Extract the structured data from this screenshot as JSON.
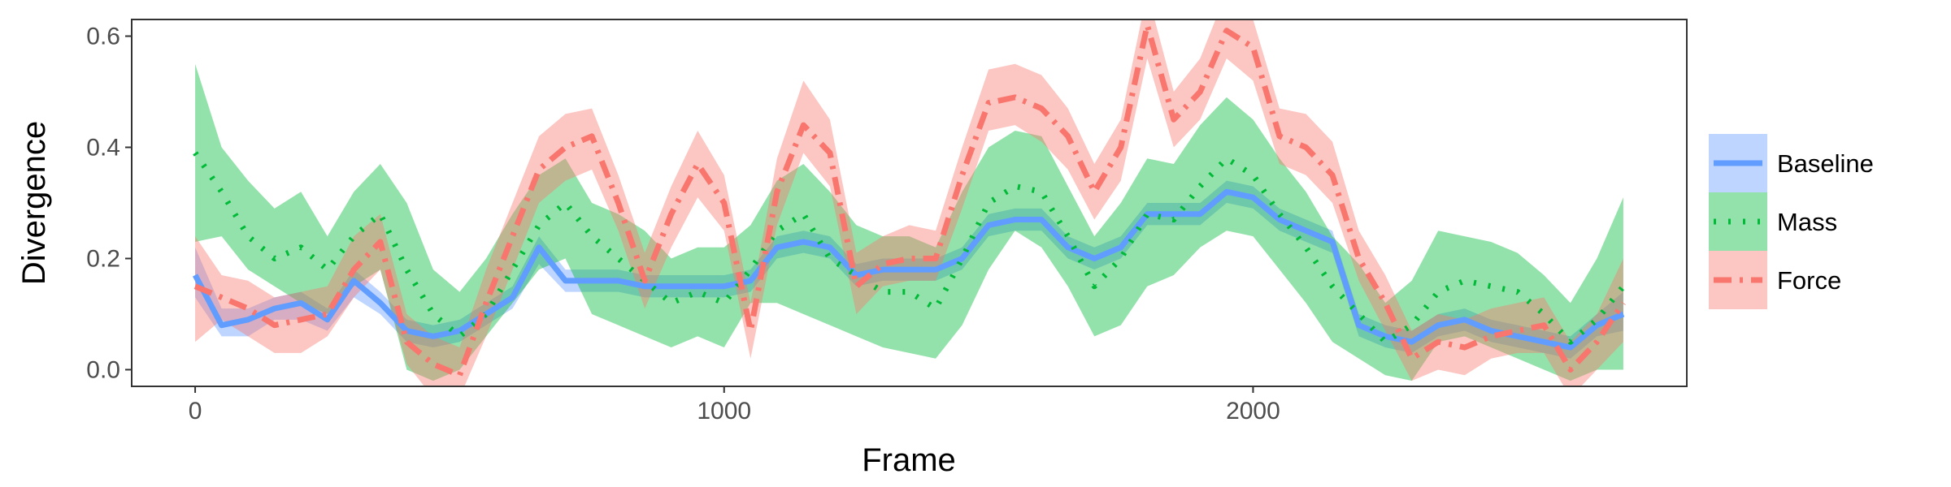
{
  "chart_data": {
    "type": "line",
    "xlabel": "Frame",
    "ylabel": "Divergence",
    "xlim": [
      -120,
      2820
    ],
    "ylim": [
      -0.03,
      0.63
    ],
    "xticks": [
      0,
      1000,
      2000
    ],
    "xtick_labels": [
      "0",
      "1000",
      "2000"
    ],
    "yticks": [
      0.0,
      0.2,
      0.4,
      0.6
    ],
    "ytick_labels": [
      "0.0",
      "0.2",
      "0.4",
      "0.6"
    ],
    "grid": false,
    "legend_position": "right",
    "x": [
      0,
      50,
      100,
      150,
      200,
      250,
      300,
      350,
      400,
      450,
      500,
      550,
      600,
      650,
      700,
      750,
      800,
      850,
      900,
      950,
      1000,
      1050,
      1100,
      1150,
      1200,
      1250,
      1300,
      1350,
      1400,
      1450,
      1500,
      1550,
      1600,
      1650,
      1700,
      1750,
      1800,
      1850,
      1900,
      1950,
      2000,
      2050,
      2100,
      2150,
      2200,
      2250,
      2300,
      2350,
      2400,
      2450,
      2500,
      2550,
      2600,
      2650,
      2700
    ],
    "series": [
      {
        "name": "Baseline",
        "color": "#619cff",
        "dash": "solid",
        "values": [
          0.17,
          0.08,
          0.09,
          0.11,
          0.12,
          0.09,
          0.16,
          0.12,
          0.07,
          0.06,
          0.07,
          0.1,
          0.13,
          0.22,
          0.16,
          0.16,
          0.16,
          0.15,
          0.15,
          0.15,
          0.15,
          0.16,
          0.22,
          0.23,
          0.22,
          0.17,
          0.18,
          0.18,
          0.18,
          0.2,
          0.26,
          0.27,
          0.27,
          0.22,
          0.2,
          0.22,
          0.28,
          0.28,
          0.28,
          0.32,
          0.31,
          0.27,
          0.25,
          0.23,
          0.08,
          0.06,
          0.05,
          0.08,
          0.09,
          0.07,
          0.06,
          0.05,
          0.04,
          0.08,
          0.1
        ],
        "lower": [
          0.13,
          0.06,
          0.06,
          0.09,
          0.09,
          0.07,
          0.13,
          0.1,
          0.05,
          0.04,
          0.05,
          0.08,
          0.11,
          0.19,
          0.14,
          0.14,
          0.14,
          0.13,
          0.13,
          0.13,
          0.13,
          0.14,
          0.2,
          0.21,
          0.2,
          0.15,
          0.16,
          0.16,
          0.16,
          0.18,
          0.24,
          0.25,
          0.25,
          0.2,
          0.18,
          0.2,
          0.26,
          0.26,
          0.26,
          0.3,
          0.29,
          0.25,
          0.23,
          0.21,
          0.06,
          0.04,
          0.03,
          0.06,
          0.07,
          0.05,
          0.04,
          0.03,
          0.02,
          0.06,
          0.07
        ],
        "upper": [
          0.22,
          0.11,
          0.11,
          0.13,
          0.14,
          0.11,
          0.18,
          0.14,
          0.09,
          0.08,
          0.09,
          0.12,
          0.15,
          0.24,
          0.18,
          0.18,
          0.18,
          0.17,
          0.17,
          0.17,
          0.17,
          0.18,
          0.24,
          0.25,
          0.24,
          0.19,
          0.2,
          0.2,
          0.2,
          0.22,
          0.28,
          0.29,
          0.29,
          0.24,
          0.22,
          0.24,
          0.3,
          0.3,
          0.3,
          0.34,
          0.33,
          0.29,
          0.27,
          0.25,
          0.1,
          0.08,
          0.07,
          0.1,
          0.11,
          0.09,
          0.08,
          0.07,
          0.06,
          0.1,
          0.14
        ]
      },
      {
        "name": "Mass",
        "color": "#00ba38",
        "dash": "dotted",
        "values": [
          0.39,
          0.32,
          0.24,
          0.2,
          0.22,
          0.18,
          0.24,
          0.28,
          0.18,
          0.1,
          0.06,
          0.1,
          0.18,
          0.26,
          0.3,
          0.24,
          0.2,
          0.16,
          0.12,
          0.14,
          0.12,
          0.18,
          0.25,
          0.28,
          0.2,
          0.17,
          0.14,
          0.14,
          0.11,
          0.2,
          0.3,
          0.33,
          0.32,
          0.24,
          0.15,
          0.2,
          0.28,
          0.27,
          0.33,
          0.38,
          0.35,
          0.28,
          0.22,
          0.15,
          0.1,
          0.05,
          0.08,
          0.14,
          0.16,
          0.15,
          0.14,
          0.1,
          0.05,
          0.09,
          0.15
        ],
        "lower": [
          0.23,
          0.24,
          0.18,
          0.15,
          0.12,
          0.1,
          0.15,
          0.18,
          0.0,
          -0.02,
          0.0,
          0.06,
          0.12,
          0.18,
          0.2,
          0.1,
          0.08,
          0.06,
          0.04,
          0.06,
          0.04,
          0.12,
          0.12,
          0.1,
          0.08,
          0.06,
          0.04,
          0.03,
          0.02,
          0.08,
          0.18,
          0.25,
          0.22,
          0.15,
          0.06,
          0.08,
          0.15,
          0.17,
          0.22,
          0.25,
          0.24,
          0.18,
          0.12,
          0.05,
          0.02,
          -0.01,
          -0.02,
          0.05,
          0.06,
          0.04,
          0.02,
          0.0,
          -0.02,
          0.0,
          0.0
        ],
        "upper": [
          0.55,
          0.4,
          0.34,
          0.29,
          0.32,
          0.24,
          0.32,
          0.37,
          0.3,
          0.18,
          0.14,
          0.2,
          0.28,
          0.35,
          0.38,
          0.3,
          0.28,
          0.25,
          0.2,
          0.22,
          0.22,
          0.26,
          0.34,
          0.37,
          0.32,
          0.26,
          0.24,
          0.24,
          0.22,
          0.32,
          0.4,
          0.43,
          0.42,
          0.33,
          0.24,
          0.3,
          0.38,
          0.37,
          0.44,
          0.49,
          0.45,
          0.38,
          0.32,
          0.24,
          0.19,
          0.12,
          0.16,
          0.25,
          0.24,
          0.23,
          0.21,
          0.17,
          0.12,
          0.2,
          0.31
        ]
      },
      {
        "name": "Force",
        "color": "#f8766d",
        "dash": "dashdot",
        "values": [
          0.15,
          0.13,
          0.11,
          0.08,
          0.09,
          0.1,
          0.18,
          0.23,
          0.05,
          0.01,
          -0.01,
          0.12,
          0.24,
          0.36,
          0.4,
          0.42,
          0.3,
          0.16,
          0.28,
          0.37,
          0.3,
          0.07,
          0.32,
          0.44,
          0.39,
          0.15,
          0.19,
          0.2,
          0.2,
          0.35,
          0.48,
          0.49,
          0.47,
          0.42,
          0.32,
          0.4,
          0.62,
          0.45,
          0.5,
          0.61,
          0.58,
          0.42,
          0.4,
          0.35,
          0.2,
          0.12,
          0.02,
          0.05,
          0.04,
          0.06,
          0.07,
          0.08,
          0.0,
          0.05,
          0.12
        ],
        "lower": [
          0.05,
          0.09,
          0.06,
          0.03,
          0.03,
          0.06,
          0.13,
          0.18,
          0.01,
          -0.05,
          -0.05,
          0.06,
          0.18,
          0.3,
          0.34,
          0.36,
          0.25,
          0.11,
          0.22,
          0.31,
          0.25,
          0.02,
          0.26,
          0.39,
          0.33,
          0.1,
          0.15,
          0.16,
          0.16,
          0.29,
          0.43,
          0.44,
          0.41,
          0.36,
          0.27,
          0.34,
          0.56,
          0.4,
          0.45,
          0.56,
          0.52,
          0.37,
          0.35,
          0.3,
          0.16,
          0.07,
          -0.02,
          0.0,
          -0.01,
          0.02,
          0.03,
          0.03,
          -0.05,
          0.0,
          0.05
        ],
        "upper": [
          0.24,
          0.17,
          0.16,
          0.13,
          0.14,
          0.15,
          0.24,
          0.28,
          0.1,
          0.06,
          0.04,
          0.18,
          0.3,
          0.42,
          0.46,
          0.47,
          0.35,
          0.21,
          0.33,
          0.43,
          0.35,
          0.12,
          0.38,
          0.52,
          0.45,
          0.21,
          0.24,
          0.26,
          0.25,
          0.4,
          0.54,
          0.55,
          0.53,
          0.47,
          0.37,
          0.45,
          0.68,
          0.5,
          0.56,
          0.68,
          0.63,
          0.47,
          0.46,
          0.41,
          0.25,
          0.17,
          0.07,
          0.1,
          0.09,
          0.11,
          0.12,
          0.13,
          0.05,
          0.1,
          0.2
        ]
      }
    ]
  }
}
